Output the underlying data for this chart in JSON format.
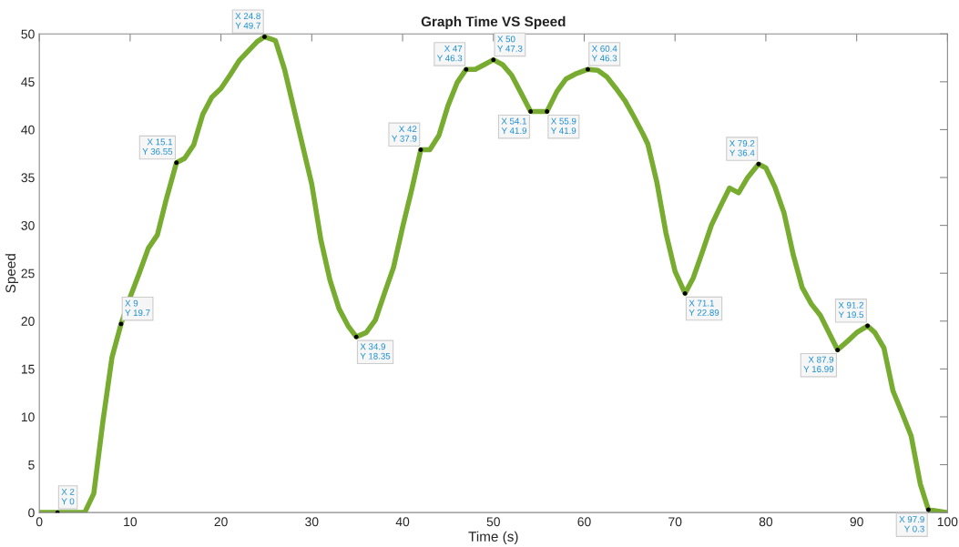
{
  "chart_data": {
    "type": "line",
    "title": "Graph Time VS Speed",
    "xlabel": "Time (s)",
    "ylabel": "Speed",
    "xlim": [
      0,
      100
    ],
    "xticks": [
      0,
      10,
      20,
      30,
      40,
      50,
      60,
      70,
      80,
      90,
      100
    ],
    "ylim": [
      0,
      50
    ],
    "yticks": [
      0,
      5,
      10,
      15,
      20,
      25,
      30,
      35,
      40,
      45,
      50
    ],
    "grid": false,
    "legend": false,
    "marker": "none",
    "line_style": "solid",
    "series": [
      {
        "color": "#77ac30",
        "x": [
          0,
          2,
          5,
          6,
          7,
          8,
          9,
          10,
          11,
          12,
          13,
          14,
          15.1,
          16,
          17,
          18,
          19,
          20,
          21,
          22,
          23,
          24,
          24.8,
          26,
          27,
          28,
          29,
          30,
          31,
          32,
          33,
          34,
          34.9,
          36,
          37,
          38,
          39,
          40,
          41,
          42,
          43,
          44,
          45,
          46,
          47,
          48,
          49,
          50,
          51,
          52,
          53,
          54.1,
          55,
          55.9,
          57,
          58,
          59,
          60.4,
          61.5,
          62.5,
          63.5,
          64.5,
          65.5,
          66.5,
          67,
          68,
          69,
          70,
          71.1,
          72,
          73,
          74,
          75,
          76,
          77,
          78,
          79.2,
          80,
          81,
          82,
          83,
          84,
          85,
          86,
          87,
          87.9,
          89,
          90,
          91.2,
          92,
          93,
          94,
          95,
          96,
          97,
          97.9,
          100
        ],
        "values": [
          0,
          0,
          0,
          2,
          9.5,
          16.2,
          19.7,
          22.5,
          25,
          27.6,
          29,
          32.8,
          36.55,
          37,
          38.4,
          41.6,
          43.4,
          44.3,
          45.7,
          47.2,
          48.2,
          49.2,
          49.7,
          49.3,
          46.3,
          42.3,
          38.3,
          34.3,
          28.5,
          24.3,
          21.3,
          19.5,
          18.35,
          18.8,
          20.1,
          22.9,
          25.6,
          29.8,
          33.7,
          37.9,
          37.9,
          39.4,
          42.5,
          44.9,
          46.3,
          46.3,
          46.8,
          47.3,
          46.8,
          45.7,
          43.9,
          41.9,
          41.9,
          41.9,
          44,
          45.3,
          45.8,
          46.3,
          46.2,
          45.5,
          44.3,
          43,
          41.3,
          39.5,
          38.5,
          34.5,
          29.2,
          25.2,
          22.89,
          24.5,
          27.2,
          30,
          32,
          33.9,
          33.4,
          35,
          36.4,
          36,
          34,
          31.3,
          27,
          23.5,
          21.8,
          20.6,
          18.7,
          16.99,
          17.9,
          18.8,
          19.5,
          18.8,
          17.2,
          12.7,
          10.4,
          8,
          3,
          0.3,
          0
        ]
      }
    ],
    "annotations": [
      {
        "text": "X 2\nY 0",
        "x": 2,
        "y": 0
      },
      {
        "text": "X 9\nY 19.7",
        "x": 9,
        "y": 19.7
      },
      {
        "text": "X 15.1\nY 36.55",
        "x": 15.1,
        "y": 36.55
      },
      {
        "text": "X 24.8\nY 49.7",
        "x": 24.8,
        "y": 49.7
      },
      {
        "text": "X 34.9\nY 18.35",
        "x": 34.9,
        "y": 18.35
      },
      {
        "text": "X 42\nY 37.9",
        "x": 42,
        "y": 37.9
      },
      {
        "text": "X 47\nY 46.3",
        "x": 47,
        "y": 46.3
      },
      {
        "text": "X 50\nY 47.3",
        "x": 50,
        "y": 47.3
      },
      {
        "text": "X 54.1\nY 41.9",
        "x": 54.1,
        "y": 41.9
      },
      {
        "text": "X 55.9\nY 41.9",
        "x": 55.9,
        "y": 41.9
      },
      {
        "text": "X 60.4\nY 46.3",
        "x": 60.4,
        "y": 46.3
      },
      {
        "text": "X 71.1\nY 22.89",
        "x": 71.1,
        "y": 22.89
      },
      {
        "text": "X 79.2\nY 36.4",
        "x": 79.2,
        "y": 36.4
      },
      {
        "text": "X 87.9\nY 16.99",
        "x": 87.9,
        "y": 16.99
      },
      {
        "text": "X 91.2\nY 19.5",
        "x": 91.2,
        "y": 19.5
      },
      {
        "text": "X 97.9\nY 0.3",
        "x": 97.9,
        "y": 0.3
      }
    ]
  }
}
